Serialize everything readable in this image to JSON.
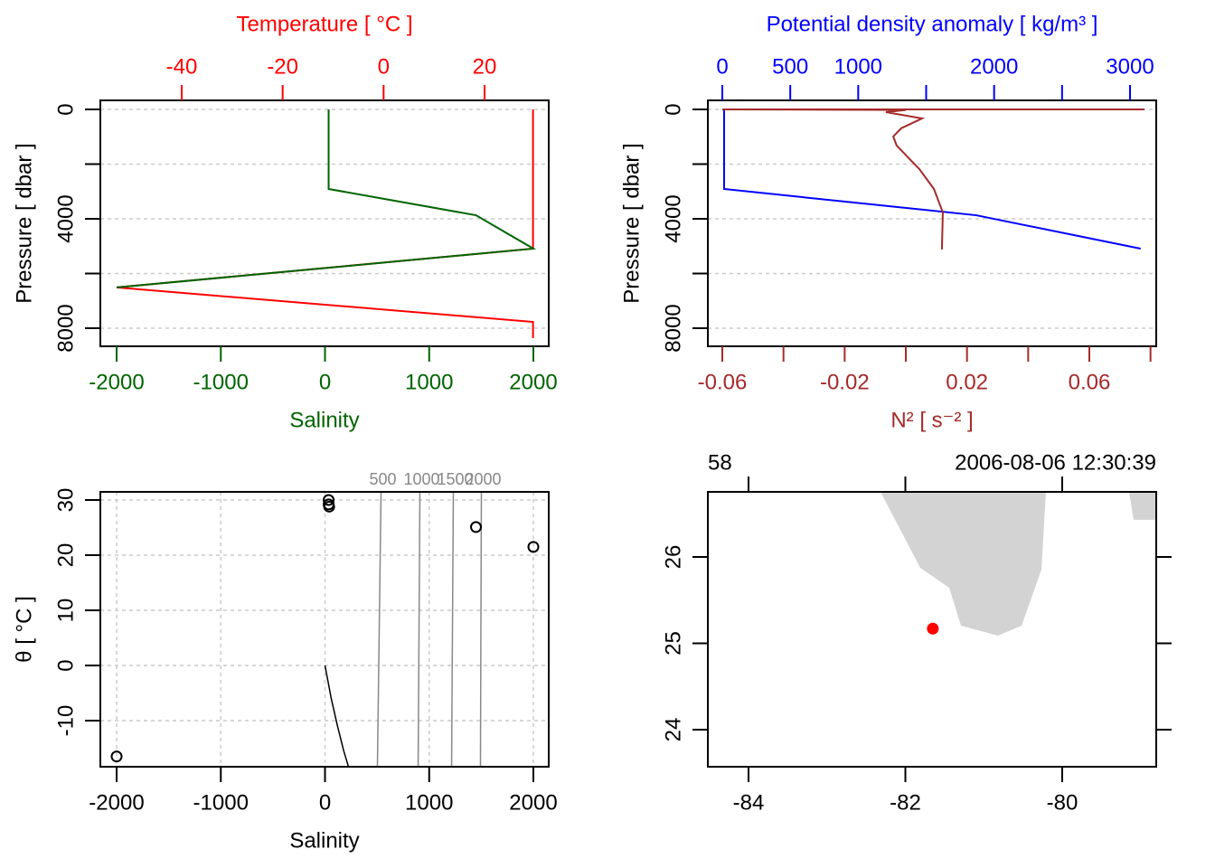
{
  "chart_data": [
    {
      "type": "line",
      "grid": "horizontal dotted",
      "colors": {
        "temperature": "#ff0000",
        "salinity": "#006400"
      },
      "axes": {
        "top": {
          "title": "Temperature [ °C ]",
          "ticks": [
            -40,
            -20,
            0,
            20
          ],
          "labels": [
            "-40",
            "-20",
            "0",
            "20"
          ],
          "color": "#ff0000"
        },
        "bottom": {
          "title": "Salinity",
          "ticks": [
            -2000,
            -1000,
            0,
            1000,
            2000
          ],
          "labels": [
            "-2000",
            "-1000",
            "0",
            "1000",
            "2000"
          ],
          "color": "#006400"
        },
        "left": {
          "title": "Pressure [ dbar ]",
          "ticks": [
            0,
            2000,
            4000,
            6000,
            8000
          ],
          "labels": [
            "0",
            "",
            "4000",
            "",
            "8000"
          ],
          "color": "#000000",
          "reversed": true
        }
      },
      "series": [
        {
          "key": "temperature",
          "axis": "top",
          "points": [
            [
              29.6,
              0
            ],
            [
              29.6,
              5090
            ],
            [
              -52.9,
              6510
            ],
            [
              29.6,
              7770
            ],
            [
              29.6,
              8360
            ]
          ]
        },
        {
          "key": "salinity",
          "axis": "bottom",
          "points": [
            [
              35,
              0
            ],
            [
              35,
              2910
            ],
            [
              1449,
              3870
            ],
            [
              2000,
              5090
            ],
            [
              -2000,
              6510
            ]
          ]
        }
      ]
    },
    {
      "type": "line",
      "grid": "horizontal dotted",
      "colors": {
        "density": "#0000ff",
        "n2": "#a52a2a"
      },
      "axes": {
        "top": {
          "title": "Potential density anomaly [ kg/m³ ]",
          "ticks": [
            0,
            500,
            1000,
            1500,
            2000,
            2500,
            3000
          ],
          "labels": [
            "0",
            "500",
            "1000",
            "",
            "2000",
            "",
            "3000"
          ],
          "color": "#0000ff"
        },
        "bottom": {
          "title": "N² [ s⁻² ]",
          "ticks": [
            -0.06,
            -0.04,
            -0.02,
            0,
            0.02,
            0.04,
            0.06,
            0.08
          ],
          "labels": [
            "-0.06",
            "",
            "-0.02",
            "",
            "0.02",
            "",
            "0.06",
            ""
          ],
          "color": "#a52a2a"
        },
        "left": {
          "title": "Pressure [ dbar ]",
          "ticks": [
            0,
            2000,
            4000,
            6000,
            8000
          ],
          "labels": [
            "0",
            "",
            "4000",
            "",
            "8000"
          ],
          "color": "#000000",
          "reversed": true
        }
      },
      "series": [
        {
          "key": "density",
          "axis": "top",
          "points": [
            [
              13,
              0
            ],
            [
              13,
              2910
            ],
            [
              1868,
              3870
            ],
            [
              3078,
              5090
            ]
          ]
        },
        {
          "key": "n2",
          "axis": "bottom",
          "points": [
            [
              0.078,
              0
            ],
            [
              -0.06,
              0
            ],
            [
              0.0,
              20
            ],
            [
              -0.0065,
              100
            ],
            [
              0.0053,
              330
            ],
            [
              -0.0015,
              690
            ],
            [
              -0.0041,
              990
            ],
            [
              -0.003,
              1320
            ],
            [
              0.0044,
              2180
            ],
            [
              0.0092,
              2910
            ],
            [
              0.0121,
              3770
            ],
            [
              0.0118,
              5120
            ]
          ]
        }
      ]
    },
    {
      "type": "scatter",
      "grid": "both dotted",
      "colors": {
        "points": "#000000",
        "isopycnal": "#888888",
        "freezing": "#000000"
      },
      "axes": {
        "bottom": {
          "title": "Salinity",
          "ticks": [
            -2000,
            -1000,
            0,
            1000,
            2000
          ],
          "labels": [
            "-2000",
            "-1000",
            "0",
            "1000",
            "2000"
          ],
          "color": "#000000"
        },
        "left": {
          "title": "θ [ °C ]",
          "ticks": [
            30,
            20,
            10,
            0,
            -10
          ],
          "labels": [
            "30",
            "20",
            "10",
            "0",
            "-10"
          ],
          "color": "#000000"
        }
      },
      "points": [
        [
          35,
          30
        ],
        [
          35,
          29.2
        ],
        [
          40,
          28.8
        ],
        [
          1449,
          25.1
        ],
        [
          2000,
          21.5
        ],
        [
          -2000,
          -16.5
        ]
      ],
      "freezing_line": [
        [
          0,
          0
        ],
        [
          60,
          -6
        ],
        [
          120,
          -11
        ],
        [
          180,
          -15.5
        ],
        [
          226,
          -18.4
        ]
      ],
      "isopycnals": [
        {
          "level": "500",
          "points": [
            [
              538,
              31.5
            ],
            [
              503,
              -18.4
            ]
          ]
        },
        {
          "level": "1000",
          "points": [
            [
              911,
              31.5
            ],
            [
              894,
              -18.4
            ]
          ]
        },
        {
          "level": "1500",
          "points": [
            [
              1232,
              31.5
            ],
            [
              1215,
              -18.4
            ]
          ]
        },
        {
          "level": "2000",
          "points": [
            [
              1501,
              31.5
            ],
            [
              1492,
              -18.4
            ]
          ]
        }
      ]
    },
    {
      "type": "map",
      "station_label": "58",
      "datetime": "2006-08-06 12:30:39",
      "colors": {
        "land": "#d3d3d3",
        "station": "#ff0000"
      },
      "axes": {
        "bottom": {
          "ticks": [
            -84,
            -82,
            -80
          ],
          "labels": [
            "-84",
            "-82",
            "-80"
          ]
        },
        "left": {
          "ticks": [
            26,
            25,
            24
          ],
          "labels": [
            "26",
            "25",
            "24"
          ]
        }
      },
      "station": {
        "lon": -81.65,
        "lat": 25.17
      },
      "land": [
        [
          [
            -82.317,
            26.754
          ],
          [
            -81.81,
            25.874
          ],
          [
            -81.441,
            25.644
          ],
          [
            -81.291,
            25.204
          ],
          [
            -80.818,
            25.089
          ],
          [
            -80.519,
            25.204
          ],
          [
            -80.265,
            25.853
          ],
          [
            -80.208,
            26.754
          ]
        ],
        [
          [
            -79.147,
            26.754
          ],
          [
            -79.09,
            26.43
          ],
          [
            -78.8,
            26.43
          ],
          [
            -78.8,
            26.754
          ]
        ]
      ]
    }
  ]
}
